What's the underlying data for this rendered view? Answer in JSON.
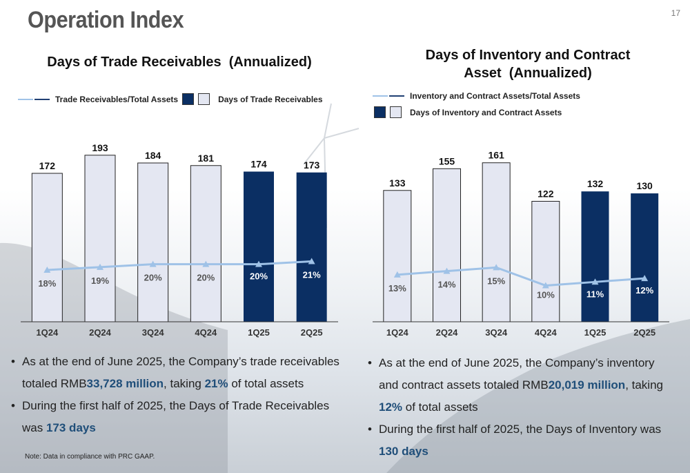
{
  "page": {
    "title": "Operation Index",
    "page_number": "17",
    "note": "Note: Data in compliance with PRC GAAP."
  },
  "colors": {
    "bar_dark": "#0b2f63",
    "bar_light": "#e4e7f2",
    "line": "#9fc2e7",
    "line_dark": "#1f3f73",
    "highlight": "#1f4e79"
  },
  "left": {
    "title": "Days of Trade Receivables  (Annualized)",
    "legend_line": "Trade Receivables/Total Assets",
    "legend_bar": "Days of Trade Receivables",
    "bullet1": {
      "a": "As at the end of June 2025, the Company’s trade receivables totaled RMB",
      "b": "33,728 million",
      "c": ", taking ",
      "d": "21%",
      "e": " of total assets"
    },
    "bullet2": {
      "a": "During the first half of 2025, the Days of Trade Receivables was ",
      "b": "173 days"
    }
  },
  "right": {
    "title": "Days of Inventory and Contract Asset  (Annualized)",
    "legend_line": "Inventory and Contract Assets/Total Assets",
    "legend_bar": "Days of Inventory and Contract Assets",
    "bullet1": {
      "a": "As at the end of June 2025, the Company’s inventory and contract assets totaled RMB",
      "b": "20,019 million",
      "c": ", taking ",
      "d": "12%",
      "e": " of total assets"
    },
    "bullet2": {
      "a": "During the first half of 2025, the Days of Inventory was ",
      "b": "130 days"
    }
  },
  "chart_data": [
    {
      "type": "bar",
      "title": "Days of Trade Receivables  (Annualized)",
      "categories": [
        "1Q24",
        "2Q24",
        "3Q24",
        "4Q24",
        "1Q25",
        "2Q25"
      ],
      "series": [
        {
          "name": "Days of Trade Receivables",
          "values": [
            172,
            193,
            184,
            181,
            174,
            173
          ],
          "labels": [
            "172",
            "193",
            "184",
            "181",
            "174",
            "173"
          ],
          "highlight": [
            false,
            false,
            false,
            false,
            true,
            true
          ]
        },
        {
          "name": "Trade Receivables/Total Assets",
          "type": "line",
          "values": [
            18,
            19,
            20,
            20,
            20,
            21
          ],
          "labels": [
            "18%",
            "19%",
            "20%",
            "20%",
            "20%",
            "21%"
          ]
        }
      ],
      "bar_ylim": [
        0,
        200
      ],
      "line_ylim": [
        0,
        60
      ]
    },
    {
      "type": "bar",
      "title": "Days of Inventory and Contract Asset  (Annualized)",
      "categories": [
        "1Q24",
        "2Q24",
        "3Q24",
        "4Q24",
        "1Q25",
        "2Q25"
      ],
      "series": [
        {
          "name": "Days of Inventory and Contract Assets",
          "values": [
            133,
            155,
            161,
            122,
            132,
            130
          ],
          "labels": [
            "133",
            "155",
            "161",
            "122",
            "132",
            "130"
          ],
          "highlight": [
            false,
            false,
            false,
            false,
            true,
            true
          ]
        },
        {
          "name": "Inventory and Contract Assets/Total Assets",
          "type": "line",
          "values": [
            13,
            14,
            15,
            10,
            11,
            12
          ],
          "labels": [
            "13%",
            "14%",
            "15%",
            "10%",
            "11%",
            "12%"
          ]
        }
      ],
      "bar_ylim": [
        0,
        165
      ],
      "line_ylim": [
        0,
        45
      ]
    }
  ]
}
